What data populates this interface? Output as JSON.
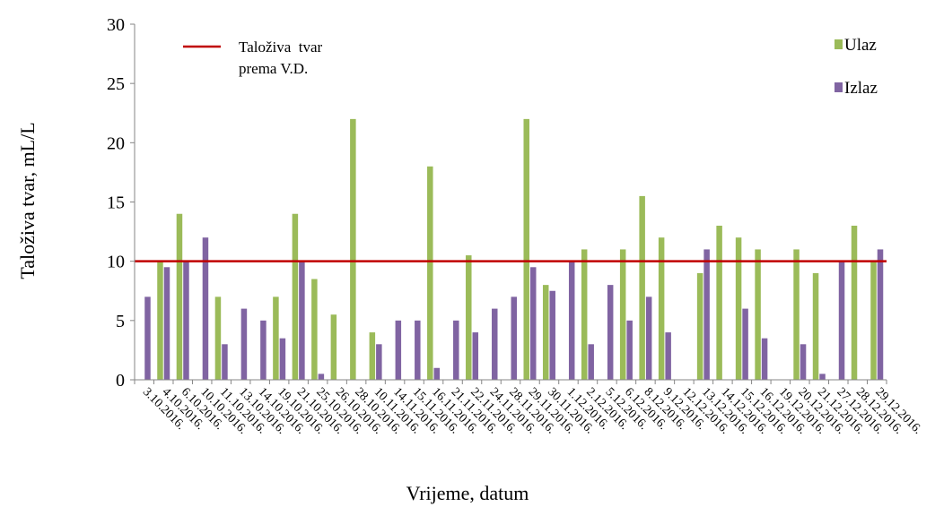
{
  "chart_data": {
    "type": "bar",
    "ylabel": "Taloživa tvar, mL/L",
    "xlabel": "Vrijeme, datum",
    "ylim": [
      0,
      30
    ],
    "yticks": [
      0,
      5,
      10,
      15,
      20,
      25,
      30
    ],
    "grid": false,
    "legend_position": "top-right",
    "categories": [
      "3.10.2016.",
      "4.10.2016.",
      "6.10.2016.",
      "10.10.2016.",
      "11.10.2016.",
      "13.10.2016.",
      "14.10.2016.",
      "19.10.2016.",
      "21.10.2016.",
      "25.10.2016.",
      "26.10.2016.",
      "28.10.2016.",
      "10.11.2016.",
      "14.11.2016.",
      "15.11.2016.",
      "16.11.2016.",
      "21.11.2016.",
      "22.11.2016.",
      "24.11.2016.",
      "28.11.2016.",
      "29.11.2016.",
      "30.11.2016.",
      "1.12.2016.",
      "2.12.2016.",
      "5.12.2016.",
      "6.12.2016.",
      "8.12.2016.",
      "9.12.2016.",
      "12.12.2016.",
      "13.12.2016.",
      "14.12.2016.",
      "15.12.2016.",
      "16.12.2016.",
      "19.12.2016.",
      "20.12.2016.",
      "21.12.2016.",
      "27.12.2016.",
      "28.12.2016.",
      "29.12.2016."
    ],
    "series": [
      {
        "name": "Ulaz",
        "color": "#9bbb59",
        "values": [
          null,
          10,
          14,
          null,
          7,
          null,
          null,
          7,
          14,
          8.5,
          5.5,
          22,
          4,
          null,
          null,
          18,
          null,
          10.5,
          null,
          null,
          22,
          8,
          null,
          11,
          null,
          11,
          15.5,
          12,
          null,
          9,
          13,
          12,
          11,
          null,
          11,
          9,
          null,
          13,
          10
        ]
      },
      {
        "name": "Izlaz",
        "color": "#8064a2",
        "values": [
          7,
          9.5,
          10,
          12,
          3,
          6,
          5,
          3.5,
          10,
          0.5,
          null,
          null,
          3,
          5,
          5,
          1,
          5,
          4,
          6,
          7,
          9.5,
          7.5,
          10,
          3,
          8,
          5,
          7,
          4,
          null,
          11,
          null,
          6,
          3.5,
          null,
          3,
          0.5,
          10,
          null,
          11
        ]
      }
    ],
    "reference_line": {
      "name": "Taloživa  tvar\nprema V.D.",
      "name_line1": "Taloživa  tvar",
      "name_line2": "prema V.D.",
      "value": 10,
      "color": "#c00000"
    }
  }
}
